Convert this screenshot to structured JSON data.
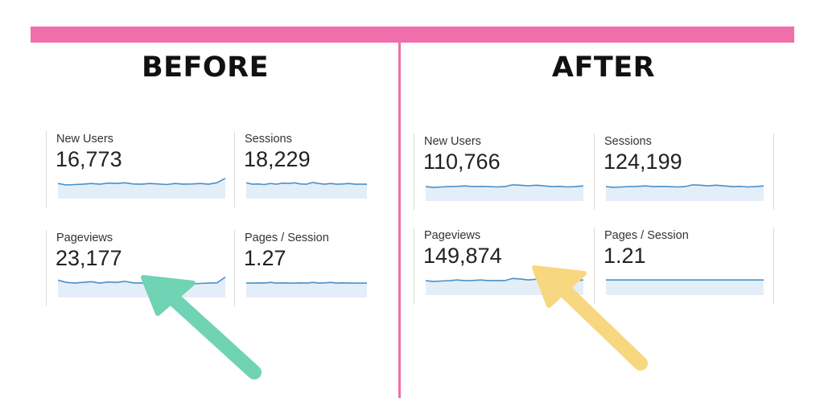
{
  "colors": {
    "accent_pink": "#f06eaa",
    "spark_line": "#4a90c9",
    "spark_fill": "#e4eef8",
    "arrow_green": "#6fd3b4",
    "arrow_yellow": "#f7d77f"
  },
  "before": {
    "heading": "BEFORE",
    "metrics": [
      {
        "label": "New Users",
        "value": "16,773",
        "trend": [
          0.55,
          0.45,
          0.48,
          0.5,
          0.55,
          0.5,
          0.58,
          0.55,
          0.6,
          0.52,
          0.5,
          0.55,
          0.52,
          0.48,
          0.55,
          0.5,
          0.52,
          0.55,
          0.5,
          0.6,
          0.9
        ]
      },
      {
        "label": "Sessions",
        "value": "18,229",
        "trend": [
          0.6,
          0.5,
          0.52,
          0.48,
          0.55,
          0.5,
          0.58,
          0.55,
          0.6,
          0.52,
          0.5,
          0.62,
          0.55,
          0.5,
          0.55,
          0.5,
          0.52,
          0.55,
          0.5,
          0.5,
          0.5
        ]
      },
      {
        "label": "Pageviews",
        "value": "23,177",
        "trend": [
          0.7,
          0.55,
          0.5,
          0.55,
          0.6,
          0.5,
          0.58,
          0.55,
          0.62,
          0.52,
          0.5,
          0.6,
          0.55,
          0.48,
          0.55,
          0.5,
          0.45,
          0.48,
          0.5,
          0.52,
          0.9
        ]
      },
      {
        "label": "Pages / Session",
        "value": "1.27",
        "trend": [
          0.5,
          0.5,
          0.52,
          0.5,
          0.55,
          0.5,
          0.52,
          0.5,
          0.5,
          0.52,
          0.5,
          0.55,
          0.5,
          0.52,
          0.55,
          0.5,
          0.52,
          0.5,
          0.5,
          0.5,
          0.5
        ]
      }
    ]
  },
  "after": {
    "heading": "AFTER",
    "metrics": [
      {
        "label": "New Users",
        "value": "110,766",
        "trend": [
          0.5,
          0.45,
          0.48,
          0.5,
          0.52,
          0.55,
          0.5,
          0.52,
          0.5,
          0.48,
          0.5,
          0.62,
          0.6,
          0.55,
          0.6,
          0.55,
          0.5,
          0.52,
          0.48,
          0.5,
          0.55
        ]
      },
      {
        "label": "Sessions",
        "value": "124,199",
        "trend": [
          0.5,
          0.45,
          0.48,
          0.5,
          0.52,
          0.55,
          0.5,
          0.52,
          0.5,
          0.48,
          0.5,
          0.62,
          0.6,
          0.55,
          0.6,
          0.55,
          0.5,
          0.52,
          0.48,
          0.5,
          0.55
        ]
      },
      {
        "label": "Pageviews",
        "value": "149,874",
        "trend": [
          0.5,
          0.45,
          0.48,
          0.5,
          0.55,
          0.5,
          0.52,
          0.55,
          0.5,
          0.52,
          0.5,
          0.65,
          0.62,
          0.55,
          0.6,
          0.55,
          0.5,
          0.52,
          0.48,
          0.5,
          0.55
        ]
      },
      {
        "label": "Pages / Session",
        "value": "1.21",
        "trend": [
          0.55,
          0.55,
          0.55,
          0.55,
          0.55,
          0.55,
          0.55,
          0.55,
          0.55,
          0.55,
          0.55,
          0.55,
          0.55,
          0.55,
          0.55,
          0.55,
          0.55,
          0.55,
          0.55,
          0.55,
          0.55
        ]
      }
    ]
  }
}
